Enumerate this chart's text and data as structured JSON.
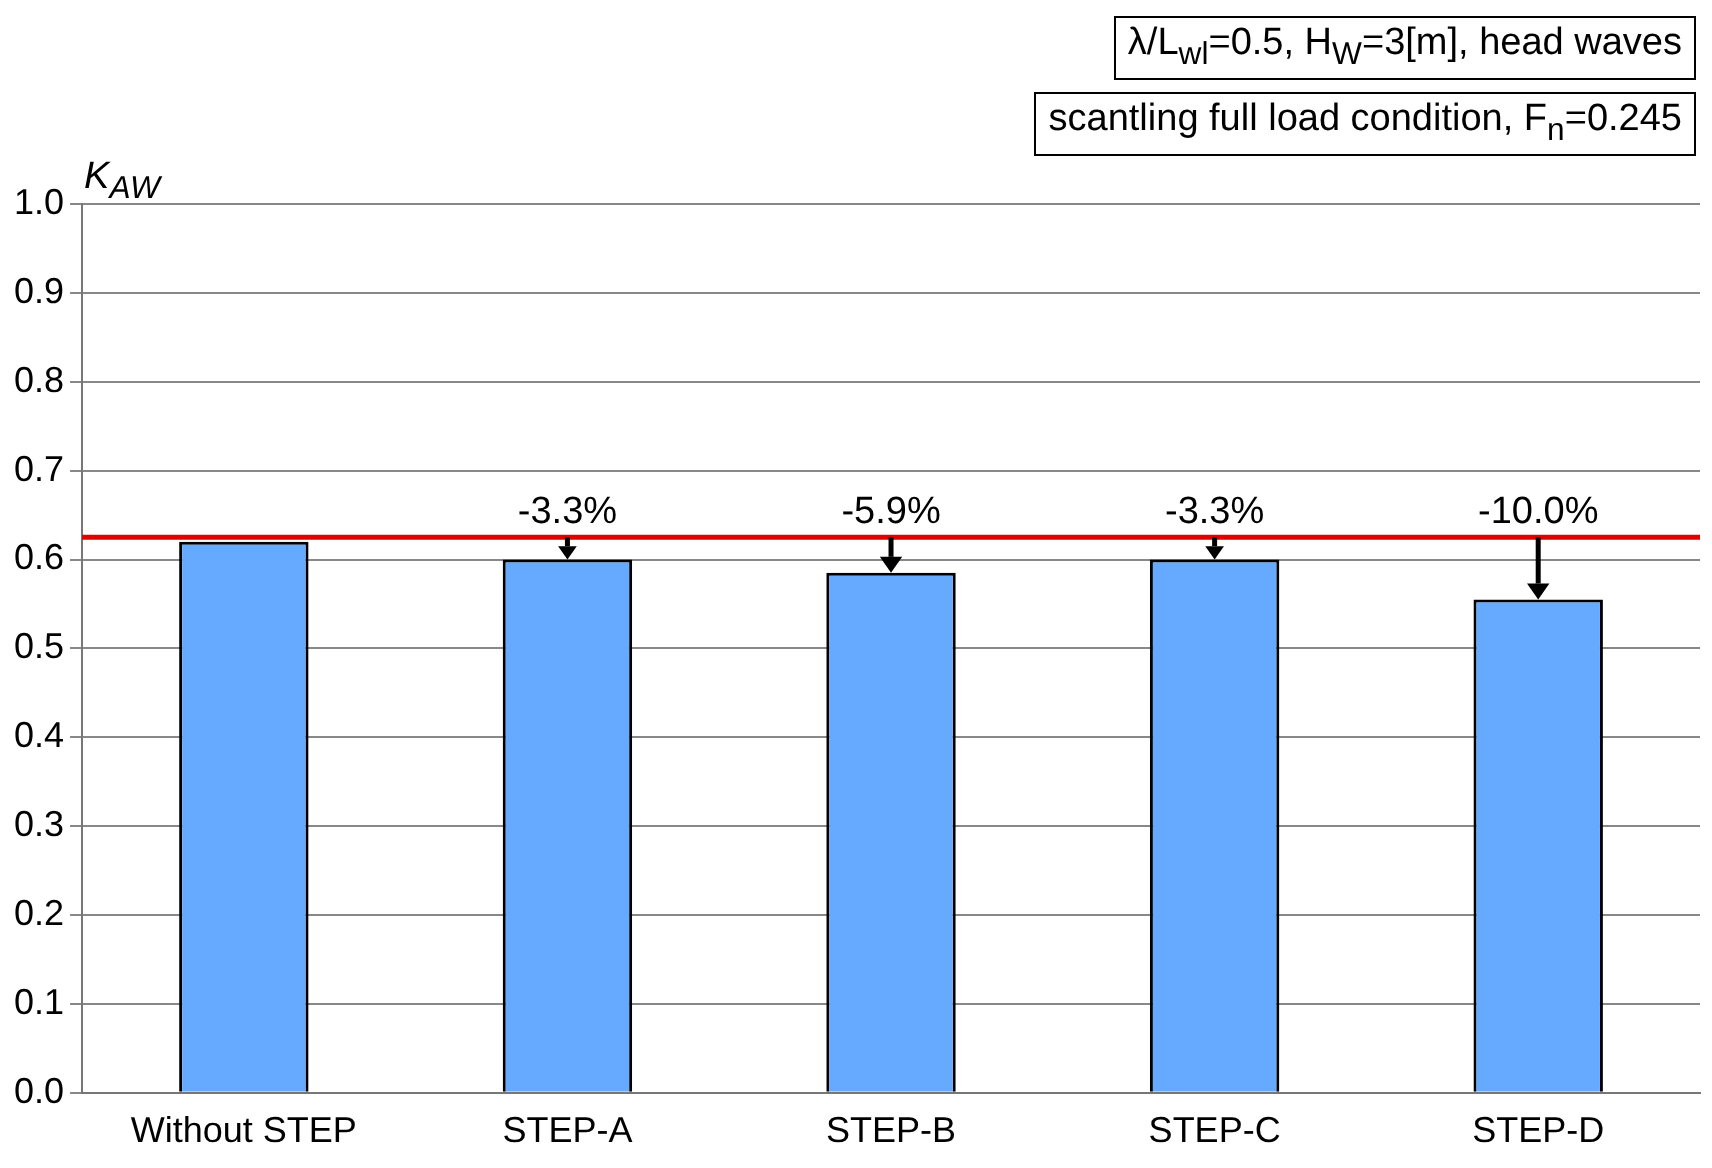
{
  "chart_data": {
    "type": "bar",
    "ylabel": "K$_{AW}$",
    "categories": [
      "Without STEP",
      "STEP-A",
      "STEP-B",
      "STEP-C",
      "STEP-D"
    ],
    "values": [
      0.62,
      0.6,
      0.585,
      0.6,
      0.555
    ],
    "color": "#66aaff",
    "ylim": [
      0,
      1
    ],
    "yticks": [
      {
        "value": 0,
        "label": "0.0"
      },
      {
        "value": 0.1,
        "label": "0.1"
      },
      {
        "value": 0.2,
        "label": "0.2"
      },
      {
        "value": 0.3,
        "label": "0.3"
      },
      {
        "value": 0.4,
        "label": "0.4"
      },
      {
        "value": 0.5,
        "label": "0.5"
      },
      {
        "value": 0.6,
        "label": "0.6"
      },
      {
        "value": 0.7,
        "label": "0.7"
      },
      {
        "value": 0.8,
        "label": "0.8"
      },
      {
        "value": 0.9,
        "label": "0.9"
      },
      {
        "value": 1,
        "label": "1.0"
      }
    ],
    "grid": "y",
    "legend": false,
    "ref_lines": [
      {
        "axis": "y",
        "value": 0.625,
        "color": "#e00000"
      }
    ],
    "annotations": [
      "λ/L$_{wl}$=0.5, H$_{W}$=3[m], head waves",
      "scantling full load condition, F$_{n}$=0.245",
      {
        "text": "-3.3%",
        "x": "STEP-A",
        "y": 0.6
      },
      {
        "text": "-5.9%",
        "x": "STEP-B",
        "y": 0.585
      },
      {
        "text": "-3.3%",
        "x": "STEP-C",
        "y": 0.6
      },
      {
        "text": "-10.0%",
        "x": "STEP-D",
        "y": 0.555
      }
    ]
  }
}
